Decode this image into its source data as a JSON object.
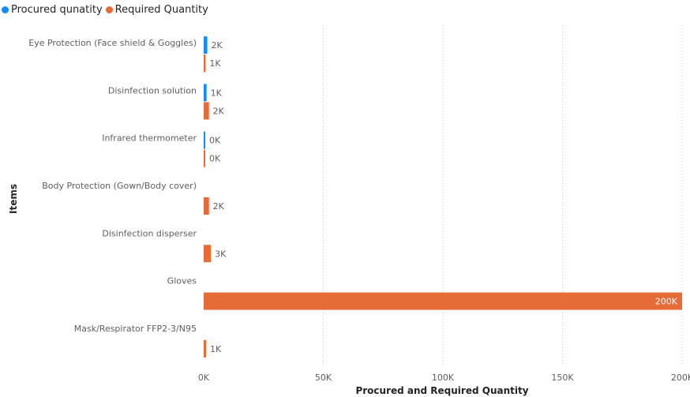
{
  "legend": {
    "series": [
      {
        "name": "Procured qunatity",
        "color": "#118DFF"
      },
      {
        "name": "Required Quantity",
        "color": "#E66C37"
      }
    ]
  },
  "chart_data": {
    "type": "bar",
    "orientation": "horizontal",
    "categories": [
      "Eye Protection (Face shield & Goggles)",
      "Disinfection solution",
      "Infrared thermometer",
      "Body Protection (Gown/Body cover)",
      "Disinfection disperser",
      "Gloves",
      "Mask/Respirator FFP2-3/N95"
    ],
    "series": [
      {
        "name": "Procured qunatity",
        "color": "#118DFF",
        "values": [
          1500,
          1200,
          300,
          null,
          null,
          null,
          null
        ],
        "labels": [
          "2K",
          "1K",
          "0K",
          null,
          null,
          null,
          null
        ]
      },
      {
        "name": "Required Quantity",
        "color": "#E66C37",
        "values": [
          800,
          2200,
          200,
          2200,
          3000,
          200000,
          1000
        ],
        "labels": [
          "1K",
          "2K",
          "0K",
          "2K",
          "3K",
          "200K",
          "1K"
        ]
      }
    ],
    "xlabel": "Procured and Required Quantity",
    "ylabel": "Items",
    "xlim": [
      0,
      200000
    ],
    "xticks": [
      0,
      50000,
      100000,
      150000,
      200000
    ],
    "xtick_labels": [
      "0K",
      "50K",
      "100K",
      "150K",
      "200K"
    ],
    "grid": "vertical-dotted",
    "legend_position": "top-left"
  }
}
